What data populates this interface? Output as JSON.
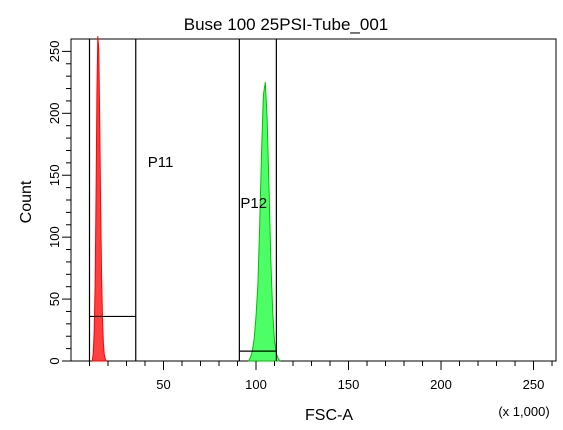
{
  "chart_data": {
    "type": "histogram",
    "title": "Buse 100 25PSI-Tube_001",
    "xlabel": "FSC-A",
    "x_multiplier_label": "(x 1,000)",
    "ylabel": "Count",
    "xlim": [
      0,
      262.144
    ],
    "ylim": [
      0,
      260
    ],
    "x_ticks": [
      50,
      100,
      150,
      200,
      250
    ],
    "x_tick_labels": [
      "50",
      "100",
      "150",
      "200",
      "250"
    ],
    "y_ticks": [
      0,
      50,
      100,
      150,
      200,
      250
    ],
    "y_tick_labels": [
      "0",
      "50",
      "100",
      "150",
      "200",
      "250"
    ],
    "x_minor_step": 10,
    "y_minor_step": 10,
    "grid": false,
    "legend": "none",
    "series": [
      {
        "name": "P11",
        "color": "#ff0000",
        "fill": "#ff4040",
        "x": [
          11.5,
          12,
          12.5,
          13,
          13.5,
          14,
          14.5,
          15,
          15.5,
          16,
          16.5,
          17,
          17.5,
          18,
          18.5,
          19
        ],
        "values": [
          0,
          6,
          22,
          60,
          130,
          215,
          262,
          252,
          195,
          128,
          72,
          34,
          14,
          5,
          2,
          0
        ]
      },
      {
        "name": "P12",
        "color": "#00c000",
        "fill": "#4dff66",
        "x": [
          96,
          97,
          98,
          99,
          100,
          101,
          102,
          103,
          104,
          105,
          106,
          107,
          108,
          109,
          110,
          111,
          112,
          113
        ],
        "values": [
          0,
          3,
          8,
          18,
          36,
          62,
          110,
          170,
          215,
          225,
          196,
          140,
          82,
          40,
          16,
          6,
          2,
          0
        ]
      }
    ],
    "gates": [
      {
        "name": "P11",
        "label": "P11",
        "x_range": [
          10,
          35
        ],
        "level": 36
      },
      {
        "name": "P12",
        "label": "P12",
        "x_range": [
          91,
          111
        ],
        "level": 8
      }
    ]
  }
}
